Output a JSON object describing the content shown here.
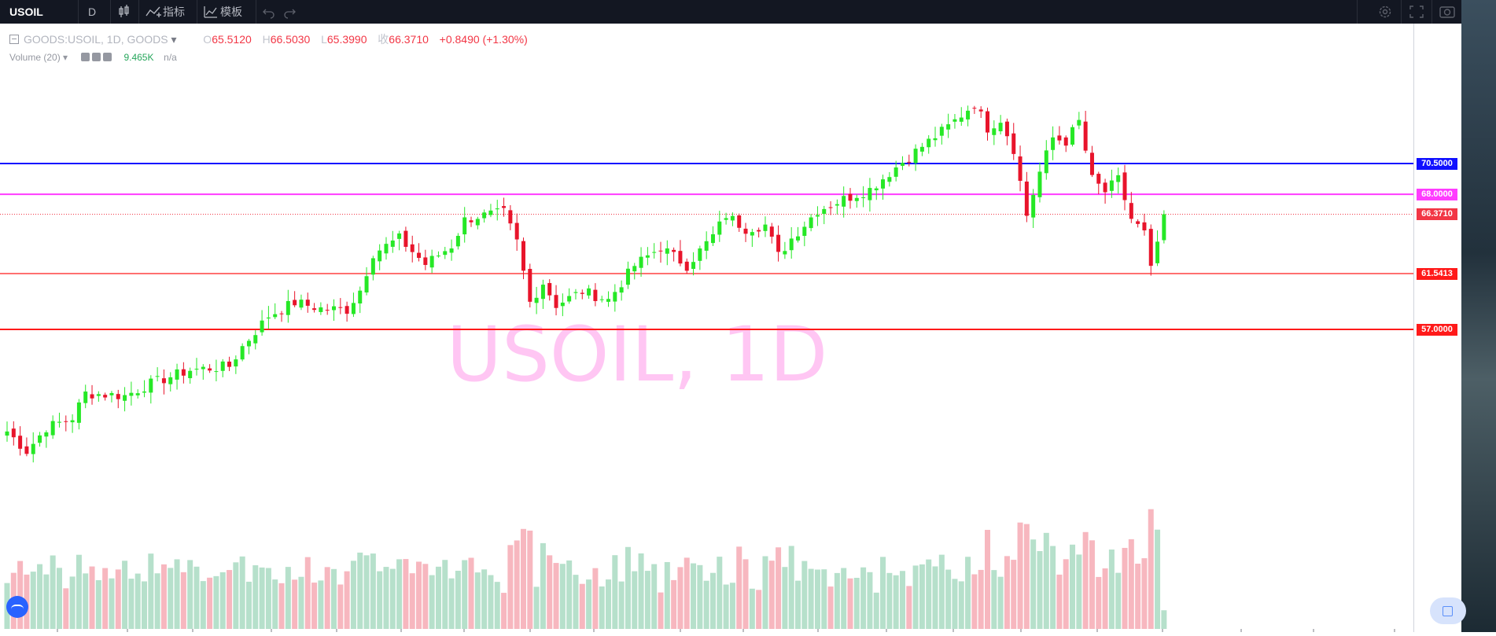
{
  "toolbar": {
    "symbol": "USOIL",
    "interval": "D",
    "indicators_label": "指标",
    "templates_label": "模板"
  },
  "legend": {
    "series_title": "GOODS:USOIL, 1D, GOODS",
    "open_key": "O",
    "open": "65.5120",
    "high_key": "H",
    "high": "66.5030",
    "low_key": "L",
    "low": "65.3990",
    "close_key": "收",
    "close": "66.3710",
    "change": "+0.8490 (+1.30%)",
    "volume_title": "Volume (20)",
    "volume_value": "9.465K",
    "volume_ma": "n/a"
  },
  "watermark": "USOIL, 1D",
  "colors": {
    "up": "#26e826",
    "down": "#e8142b",
    "vol_up": "#b6e0cb",
    "vol_down": "#f7b7bf",
    "blue_line": "#1010ff",
    "magenta_line": "#ff3cff",
    "red_line": "#ff1a1a",
    "watermark": "#ffb4f0"
  },
  "price_levels": [
    {
      "label": "70.5000",
      "price": 70.5,
      "color": "#1010ff"
    },
    {
      "label": "68.0000",
      "price": 68.0,
      "color": "#ff3cff"
    },
    {
      "label": "66.3710",
      "price": 66.371,
      "color": "#f23645",
      "dotted": true
    },
    {
      "label": "61.5413",
      "price": 61.5413,
      "color": "#ff1a1a"
    },
    {
      "label": "57.0000",
      "price": 57.0,
      "color": "#ff1a1a"
    }
  ],
  "chart_data": {
    "type": "candlestick",
    "price_range": [
      40.9,
      79.2
    ],
    "waypoints": [
      [
        0,
        48.7
      ],
      [
        3,
        47.1
      ],
      [
        6,
        49.0
      ],
      [
        10,
        49.8
      ],
      [
        12,
        51.8
      ],
      [
        18,
        51.6
      ],
      [
        22,
        52.6
      ],
      [
        28,
        53.7
      ],
      [
        34,
        54.0
      ],
      [
        36,
        55.6
      ],
      [
        40,
        58.1
      ],
      [
        44,
        59.2
      ],
      [
        48,
        58.7
      ],
      [
        52,
        58.6
      ],
      [
        54,
        60.2
      ],
      [
        56,
        63.2
      ],
      [
        60,
        64.4
      ],
      [
        64,
        62.3
      ],
      [
        68,
        63.8
      ],
      [
        70,
        65.9
      ],
      [
        72,
        66.2
      ],
      [
        76,
        66.5
      ],
      [
        78,
        64.1
      ],
      [
        80,
        59.2
      ],
      [
        82,
        60.8
      ],
      [
        84,
        59.0
      ],
      [
        88,
        60.1
      ],
      [
        92,
        59.4
      ],
      [
        96,
        62.2
      ],
      [
        100,
        63.7
      ],
      [
        104,
        62.2
      ],
      [
        108,
        64.6
      ],
      [
        110,
        66.3
      ],
      [
        113,
        65.2
      ],
      [
        116,
        65.5
      ],
      [
        118,
        63.0
      ],
      [
        120,
        64.4
      ],
      [
        124,
        66.7
      ],
      [
        128,
        67.6
      ],
      [
        132,
        68.4
      ],
      [
        136,
        70.2
      ],
      [
        140,
        71.9
      ],
      [
        144,
        73.5
      ],
      [
        148,
        75.4
      ],
      [
        150,
        73.4
      ],
      [
        152,
        74.1
      ],
      [
        154,
        71.7
      ],
      [
        156,
        66.3
      ],
      [
        158,
        69.8
      ],
      [
        160,
        72.6
      ],
      [
        162,
        72.3
      ],
      [
        164,
        73.9
      ],
      [
        166,
        69.2
      ],
      [
        168,
        68.2
      ],
      [
        170,
        69.2
      ],
      [
        172,
        66.0
      ],
      [
        174,
        64.8
      ],
      [
        175,
        61.8
      ],
      [
        177,
        66.4
      ]
    ],
    "volume_range": [
      0,
      120
    ],
    "last_close": 66.371
  }
}
